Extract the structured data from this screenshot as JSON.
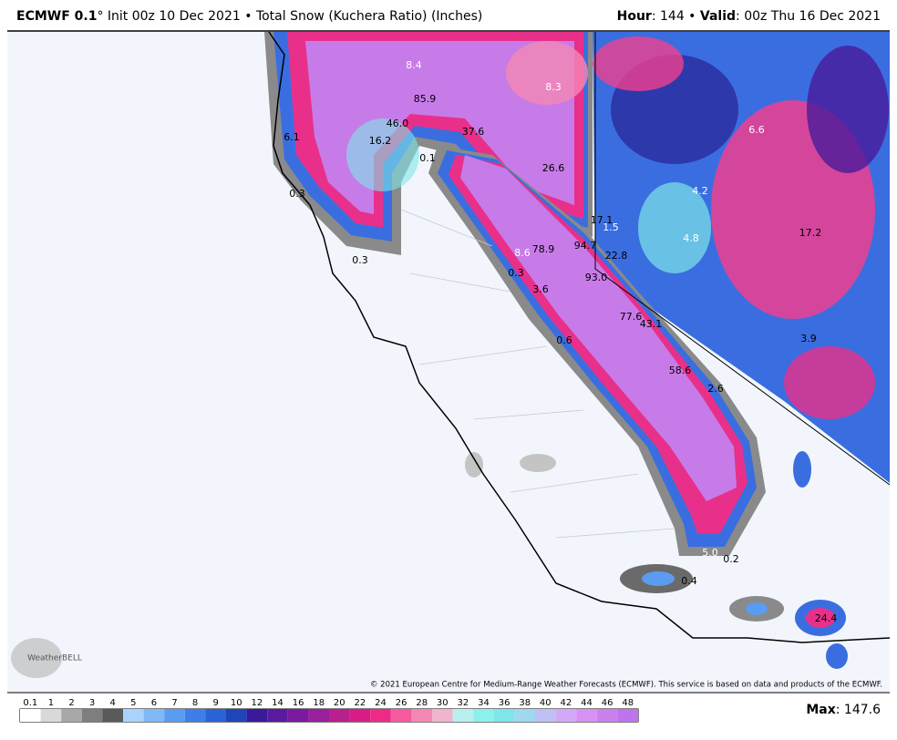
{
  "header": {
    "title_bold": "ECMWF 0.1",
    "title_rest": "° Init 00z 10 Dec 2021 • Total Snow (Kuchera Ratio) (Inches)",
    "hour_label": "Hour",
    "hour_value": ": 144 • ",
    "valid_label": "Valid",
    "valid_value": ": 00z Thu 16 Dec 2021"
  },
  "map": {
    "logo": "WeatherBELL",
    "labels": [
      "8.4",
      "85.9",
      "8.3",
      "46.0",
      "16.2",
      "37.6",
      "6.1",
      "0.1",
      "0.3",
      "26.6",
      "6.6",
      "4.2",
      "17.1",
      "1.5",
      "17.2",
      "4.8",
      "94.7",
      "22.8",
      "0.3",
      "8.6",
      "78.9",
      "0.3",
      "93.0",
      "3.6",
      "77.6",
      "43.1",
      "0.6",
      "3.9",
      "58.6",
      "2.6",
      "5.0",
      "0.2",
      "0.4",
      "24.4"
    ],
    "copyright": "© 2021 European Centre for Medium-Range Weather Forecasts (ECMWF). This service is based on data and products of the ECMWF."
  },
  "colorbar": {
    "labels": [
      "0.1",
      "1",
      "2",
      "3",
      "4",
      "5",
      "6",
      "7",
      "8",
      "9",
      "10",
      "12",
      "14",
      "16",
      "18",
      "20",
      "22",
      "24",
      "26",
      "28",
      "30",
      "32",
      "34",
      "36",
      "38",
      "40",
      "42",
      "44",
      "46",
      "48"
    ],
    "colors": [
      "#ffffff",
      "#d9d9d9",
      "#a8a8a8",
      "#7e7e7e",
      "#5a5a5a",
      "#a9d3ff",
      "#7fbaf7",
      "#5a9cef",
      "#3d7fe6",
      "#2a63d6",
      "#1e46b8",
      "#3a1a9a",
      "#5a1aa0",
      "#7a1a9e",
      "#98209c",
      "#b8208e",
      "#d81e86",
      "#ee2a86",
      "#f55a9e",
      "#f488b4",
      "#f0b4cc",
      "#b8f0ee",
      "#8ef0ea",
      "#7ee6e8",
      "#a0d8f0",
      "#c0c0f4",
      "#d4a8f6",
      "#d890f4",
      "#cc80ee",
      "#c074ec"
    ]
  },
  "footer": {
    "max_label": "Max",
    "max_value": ": 147.6"
  }
}
